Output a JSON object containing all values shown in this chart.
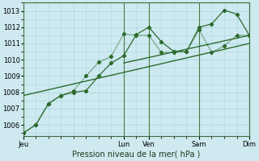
{
  "background_color": "#ceeaf0",
  "grid_color": "#a8d8e0",
  "line_color": "#2d6a2d",
  "sep_color": "#6aaa6a",
  "title": "Pression niveau de la mer( hPa )",
  "ylim": [
    1005.3,
    1013.5
  ],
  "yticks": [
    1006,
    1007,
    1008,
    1009,
    1010,
    1011,
    1012,
    1013
  ],
  "day_labels": [
    "Jeu",
    "Lun",
    "Ven",
    "Sam",
    "Dim"
  ],
  "day_positions": [
    0,
    16,
    20,
    28,
    36
  ],
  "xlim": [
    0,
    36
  ],
  "series1_x": [
    0,
    2,
    4,
    6,
    8,
    10,
    12,
    14,
    16,
    18,
    20,
    22,
    24,
    26,
    28,
    30,
    32,
    34,
    36
  ],
  "series1_y": [
    1005.5,
    1006.0,
    1007.3,
    1007.8,
    1008.0,
    1008.1,
    1009.0,
    1009.8,
    1010.25,
    1011.55,
    1012.0,
    1011.1,
    1010.5,
    1010.5,
    1012.0,
    1012.2,
    1013.05,
    1012.8,
    1011.5
  ],
  "series2_x": [
    0,
    2,
    4,
    6,
    8,
    10,
    12,
    14,
    16,
    18,
    20,
    22,
    24,
    26,
    28,
    30,
    32,
    34,
    36
  ],
  "series2_y": [
    1005.5,
    1006.0,
    1007.3,
    1007.8,
    1008.1,
    1009.0,
    1009.85,
    1010.2,
    1011.6,
    1011.5,
    1011.5,
    1010.45,
    1010.45,
    1010.5,
    1011.85,
    1010.45,
    1010.85,
    1011.5,
    1011.5
  ],
  "trend1_x": [
    0,
    36
  ],
  "trend1_y": [
    1007.8,
    1011.0
  ],
  "trend2_x": [
    16,
    36
  ],
  "trend2_y": [
    1009.8,
    1011.5
  ]
}
